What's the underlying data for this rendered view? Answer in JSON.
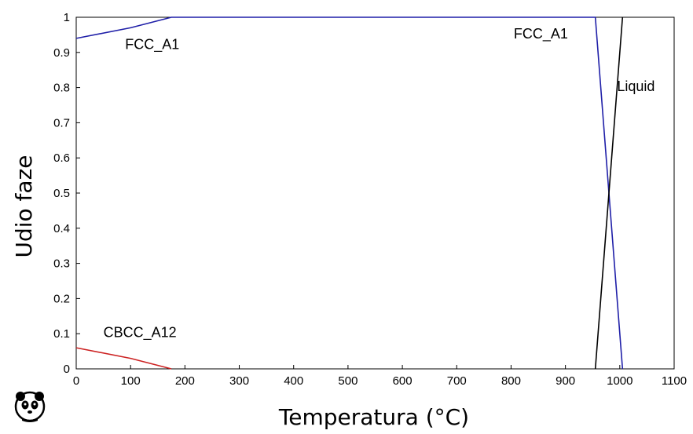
{
  "chart_data": {
    "type": "line",
    "title": "",
    "xlabel": "Temperatura (°C)",
    "ylabel": "Udio faze",
    "xlim": [
      0,
      1100
    ],
    "ylim": [
      0,
      1
    ],
    "xticks": [
      "0",
      "100",
      "200",
      "300",
      "400",
      "500",
      "600",
      "700",
      "800",
      "900",
      "1000",
      "1100"
    ],
    "yticks": [
      "0",
      "0.1",
      "0.2",
      "0.3",
      "0.4",
      "0.5",
      "0.6",
      "0.7",
      "0.8",
      "0.9",
      "1"
    ],
    "grid": false,
    "legend": "none",
    "series": [
      {
        "color": "#1f1fa8",
        "points": [
          [
            0,
            0.94
          ],
          [
            100,
            0.97
          ],
          [
            175,
            1.0
          ],
          [
            955,
            1.0
          ],
          [
            1005,
            0.0
          ]
        ]
      },
      {
        "color": "#cc2222",
        "points": [
          [
            0,
            0.06
          ],
          [
            100,
            0.03
          ],
          [
            175,
            0.0
          ]
        ]
      },
      {
        "color": "#000000",
        "points": [
          [
            955,
            0.0
          ],
          [
            1005,
            1.0
          ]
        ]
      }
    ],
    "annotations": [
      {
        "text": "FCC_A1",
        "x": 90,
        "y": 0.91
      },
      {
        "text": "FCC_A1",
        "x": 805,
        "y": 0.94
      },
      {
        "text": "Liquid",
        "x": 995,
        "y": 0.79
      },
      {
        "text": "CBCC_A12",
        "x": 50,
        "y": 0.09
      }
    ]
  },
  "logo": {
    "name": "panda-icon"
  }
}
